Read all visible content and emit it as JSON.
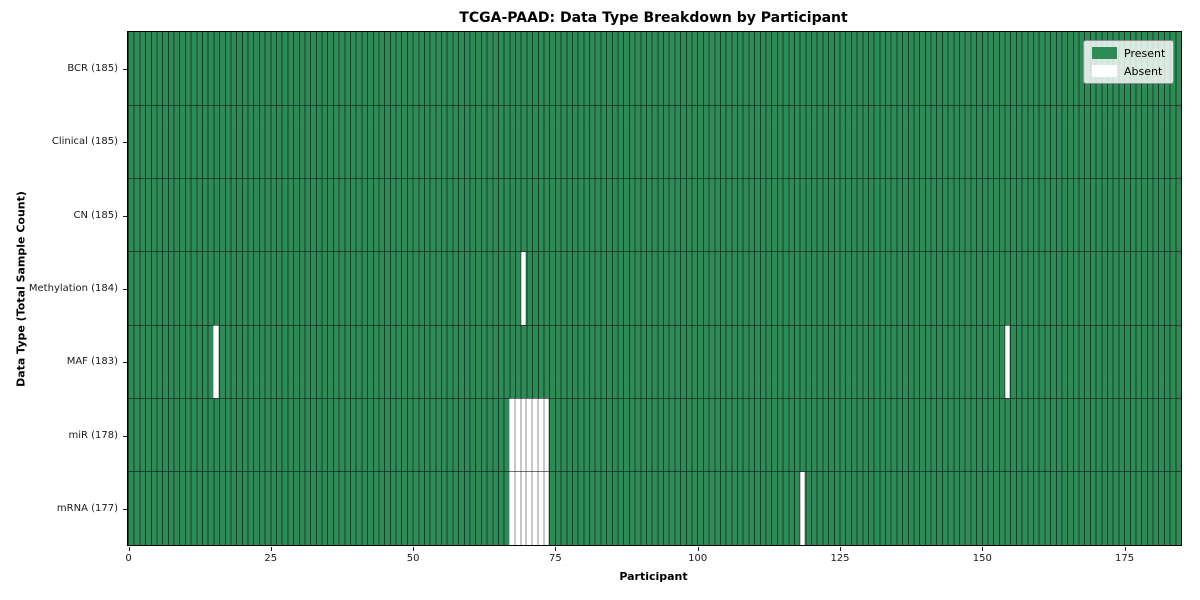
{
  "chart_data": {
    "type": "heatmap",
    "title": "TCGA-PAAD: Data Type Breakdown by Participant",
    "xlabel": "Participant",
    "ylabel": "Data Type (Total Sample Count)",
    "x_ticks": [
      0,
      25,
      50,
      75,
      100,
      125,
      150,
      175
    ],
    "xlim": [
      0,
      185
    ],
    "n_participants": 185,
    "grid": false,
    "legend": {
      "position": "upper right",
      "entries": [
        {
          "label": "Present",
          "color": "#2e8b57"
        },
        {
          "label": "Absent",
          "color": "#ffffff"
        }
      ]
    },
    "rows": [
      {
        "label": "BCR (185)",
        "total_sample_count": 185,
        "absent_participants": []
      },
      {
        "label": "Clinical (185)",
        "total_sample_count": 185,
        "absent_participants": []
      },
      {
        "label": "CN (185)",
        "total_sample_count": 185,
        "absent_participants": []
      },
      {
        "label": "Methylation (184)",
        "total_sample_count": 184,
        "absent_participants": [
          69
        ]
      },
      {
        "label": "MAF (183)",
        "total_sample_count": 183,
        "absent_participants": [
          15,
          154
        ]
      },
      {
        "label": "miR (178)",
        "total_sample_count": 178,
        "absent_participants": [
          67,
          68,
          69,
          70,
          71,
          72,
          73
        ]
      },
      {
        "label": "mRNA (177)",
        "total_sample_count": 177,
        "absent_participants": [
          67,
          68,
          69,
          70,
          71,
          72,
          73,
          118
        ]
      }
    ],
    "colors": {
      "present": "#2e8b57",
      "absent": "#ffffff",
      "cell_edge": "rgba(8,34,20,0.7)",
      "absent_cell_edge": "#c8c8c8",
      "row_separator": "rgba(20,20,20,0.6)",
      "axis": "#000000"
    }
  }
}
